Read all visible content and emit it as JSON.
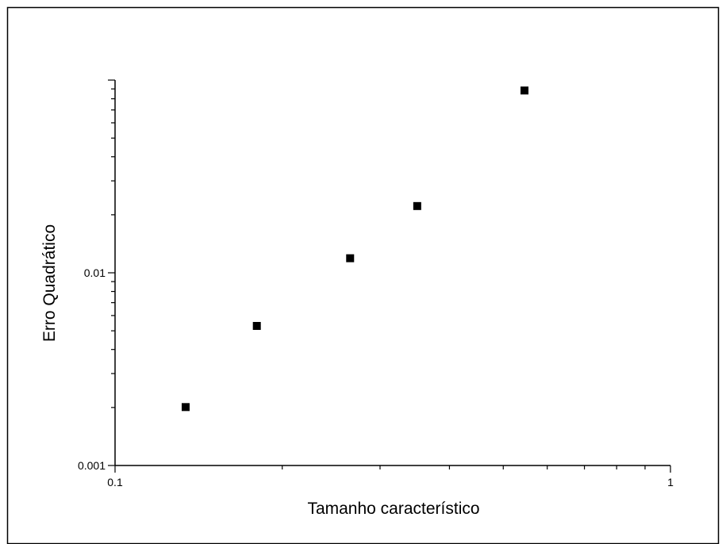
{
  "chart_data": {
    "type": "scatter",
    "title": "",
    "xlabel": "Tamanho característico",
    "ylabel": "Erro Quadrático",
    "xscale": "log",
    "yscale": "log",
    "xlim": [
      0.1,
      1
    ],
    "ylim": [
      0.001,
      0.1
    ],
    "x_tick_labels": [
      "0.1",
      "1"
    ],
    "y_tick_labels": [
      "0.001",
      "0.01"
    ],
    "grid": false,
    "legend": "none",
    "marker": "square",
    "marker_color": "#000000",
    "series": [
      {
        "points": [
          {
            "x": 0.134,
            "y": 0.00201
          },
          {
            "x": 0.18,
            "y": 0.0053
          },
          {
            "x": 0.265,
            "y": 0.0119
          },
          {
            "x": 0.35,
            "y": 0.0222
          },
          {
            "x": 0.546,
            "y": 0.0883
          }
        ]
      }
    ]
  }
}
